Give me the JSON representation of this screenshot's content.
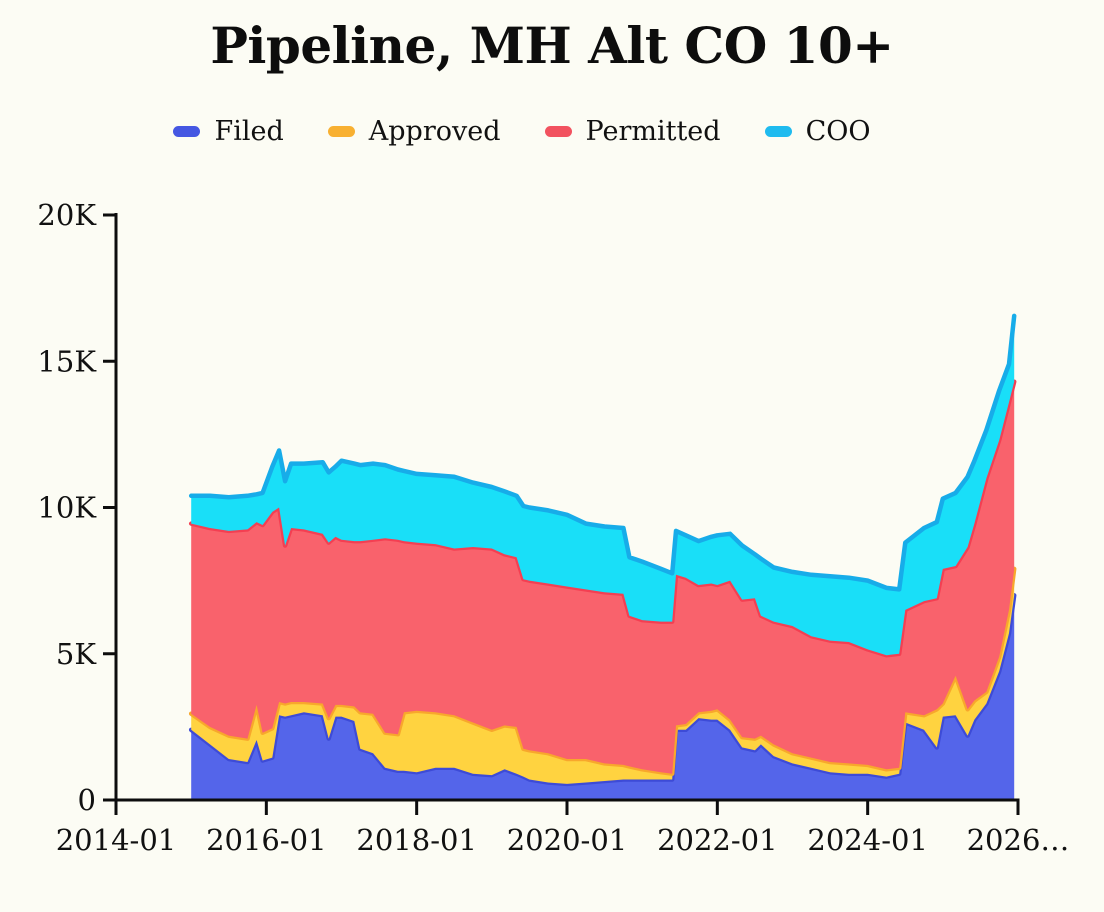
{
  "title": "Pipeline, MH Alt CO 10+",
  "legend": {
    "position": "top",
    "items": [
      {
        "label": "Filed",
        "color": "#4557e2"
      },
      {
        "label": "Approved",
        "color": "#f8b031"
      },
      {
        "label": "Permitted",
        "color": "#f2525f"
      },
      {
        "label": "COO",
        "color": "#1fbbef"
      }
    ]
  },
  "colors": {
    "background": "#fcfcf4",
    "axis": "#0d0d0d"
  },
  "chart_data": {
    "type": "area",
    "stacked": true,
    "title": "Pipeline, MH Alt CO 10+",
    "xlabel": "",
    "ylabel": "",
    "grid": false,
    "x_axis": {
      "range": [
        2014.0,
        2026.25
      ],
      "ticks": [
        {
          "label": "2014-01",
          "year": 2014
        },
        {
          "label": "2016-01",
          "year": 2016
        },
        {
          "label": "2018-01",
          "year": 2018
        },
        {
          "label": "2020-01",
          "year": 2020
        },
        {
          "label": "2022-01",
          "year": 2022
        },
        {
          "label": "2024-01",
          "year": 2024
        },
        {
          "label": "2026…",
          "year": 2026
        }
      ]
    },
    "y_axis": {
      "range": [
        0,
        20000
      ],
      "ticks": [
        {
          "label": "0",
          "value": 0
        },
        {
          "label": "5K",
          "value": 5000
        },
        {
          "label": "10K",
          "value": 10000
        },
        {
          "label": "15K",
          "value": 15000
        },
        {
          "label": "20K",
          "value": 20000
        }
      ]
    },
    "x": [
      2015.0,
      2015.25,
      2015.5,
      2015.75,
      2015.87,
      2015.95,
      2016.08,
      2016.17,
      2016.25,
      2016.33,
      2016.5,
      2016.75,
      2016.83,
      2016.92,
      2017.0,
      2017.17,
      2017.25,
      2017.42,
      2017.58,
      2017.75,
      2017.83,
      2018.0,
      2018.25,
      2018.5,
      2018.75,
      2019.0,
      2019.17,
      2019.33,
      2019.42,
      2019.5,
      2019.75,
      2020.0,
      2020.25,
      2020.5,
      2020.75,
      2020.83,
      2021.0,
      2021.25,
      2021.4,
      2021.45,
      2021.58,
      2021.75,
      2021.92,
      2022.0,
      2022.17,
      2022.33,
      2022.5,
      2022.58,
      2022.75,
      2023.0,
      2023.25,
      2023.5,
      2023.75,
      2024.0,
      2024.25,
      2024.42,
      2024.5,
      2024.75,
      2024.92,
      2025.0,
      2025.17,
      2025.33,
      2025.42,
      2025.58,
      2025.75,
      2025.88,
      2025.95
    ],
    "series": [
      {
        "name": "Filed",
        "fill": "#5465ea",
        "stroke": "#3d4bd7",
        "values": [
          2400,
          1900,
          1400,
          1300,
          2050,
          1350,
          1450,
          2900,
          2850,
          2900,
          3000,
          2900,
          2100,
          2850,
          2850,
          2700,
          1750,
          1600,
          1100,
          1000,
          1000,
          950,
          1100,
          1100,
          900,
          850,
          1050,
          900,
          800,
          700,
          600,
          550,
          600,
          650,
          700,
          700,
          700,
          700,
          700,
          2400,
          2400,
          2800,
          2750,
          2750,
          2400,
          1800,
          1700,
          1900,
          1500,
          1250,
          1100,
          950,
          900,
          900,
          800,
          900,
          2650,
          2400,
          1800,
          2850,
          2900,
          2200,
          2750,
          3300,
          4400,
          5700,
          7000
        ]
      },
      {
        "name": "Approved",
        "fill": "#ffd340",
        "stroke": "#f8a72c",
        "values": [
          550,
          600,
          800,
          800,
          1200,
          950,
          1000,
          450,
          450,
          450,
          350,
          400,
          700,
          400,
          400,
          500,
          1250,
          1350,
          1200,
          1250,
          2000,
          2100,
          1900,
          1800,
          1750,
          1550,
          1500,
          1600,
          950,
          1000,
          1000,
          850,
          800,
          600,
          500,
          450,
          350,
          250,
          200,
          150,
          200,
          200,
          300,
          350,
          350,
          350,
          400,
          300,
          400,
          350,
          350,
          350,
          350,
          300,
          250,
          200,
          350,
          500,
          1300,
          450,
          1350,
          900,
          650,
          400,
          500,
          800,
          900
        ]
      },
      {
        "name": "Permitted",
        "fill": "#f9626c",
        "stroke": "#f43f52",
        "values": [
          6500,
          6800,
          7000,
          7150,
          6250,
          7100,
          7400,
          6650,
          5400,
          5950,
          5900,
          5800,
          6000,
          5750,
          5650,
          5650,
          5850,
          5950,
          6650,
          6650,
          5850,
          5750,
          5750,
          5700,
          6000,
          6200,
          5850,
          5800,
          5800,
          5800,
          5800,
          5900,
          5800,
          5850,
          5850,
          5150,
          5100,
          5150,
          5200,
          5150,
          5000,
          4350,
          4350,
          4250,
          4750,
          4700,
          4800,
          4100,
          4200,
          4350,
          4150,
          4150,
          4150,
          3950,
          3900,
          3900,
          3500,
          3900,
          3800,
          4600,
          3750,
          5550,
          6050,
          7300,
          7400,
          7100,
          6400
        ]
      },
      {
        "name": "COO",
        "fill": "#19dff8",
        "stroke": "#17ace9",
        "values": [
          950,
          1100,
          1150,
          1150,
          950,
          1100,
          1550,
          1950,
          2200,
          2200,
          2250,
          2450,
          2400,
          2400,
          2700,
          2650,
          2600,
          2600,
          2500,
          2400,
          2400,
          2350,
          2350,
          2450,
          2200,
          2100,
          2150,
          2100,
          2500,
          2500,
          2500,
          2450,
          2250,
          2250,
          2250,
          2000,
          2000,
          1800,
          1650,
          1500,
          1450,
          1500,
          1600,
          1700,
          1600,
          1850,
          1500,
          1950,
          1850,
          1850,
          2100,
          2200,
          2200,
          2350,
          2300,
          2200,
          2300,
          2500,
          2600,
          2400,
          2500,
          2400,
          2150,
          1650,
          1700,
          1300,
          2250
        ]
      }
    ]
  }
}
